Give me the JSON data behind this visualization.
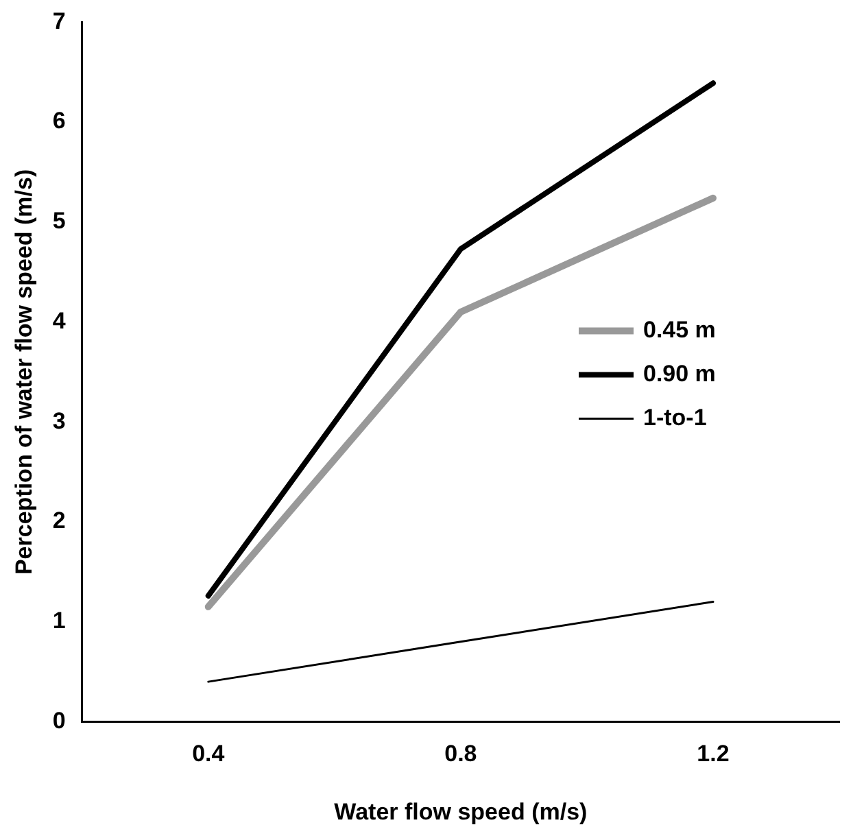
{
  "chart_data": {
    "type": "line",
    "xlabel": "Water flow speed (m/s)",
    "ylabel": "Perception of water flow speed (m/s)",
    "categories": [
      "0.4",
      "0.8",
      "1.2"
    ],
    "series": [
      {
        "name": "0.45 m",
        "color": "#999999",
        "values": [
          1.15,
          4.1,
          5.24
        ]
      },
      {
        "name": "0.90 m",
        "color": "#000000",
        "values": [
          1.26,
          4.73,
          6.39
        ]
      },
      {
        "name": "1-to-1",
        "color": "#000000",
        "values": [
          0.4,
          0.8,
          1.2
        ]
      }
    ],
    "ylim": [
      0,
      7
    ],
    "yticks": [
      0,
      1,
      2,
      3,
      4,
      5,
      6,
      7
    ],
    "grid": false,
    "legend": "right",
    "marker": "none",
    "line_style": "solid"
  }
}
